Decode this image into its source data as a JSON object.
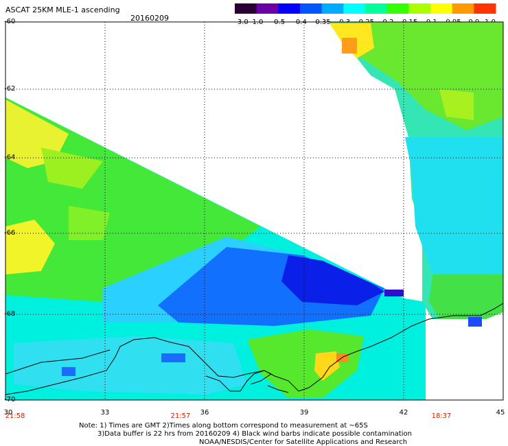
{
  "header": {
    "title": "ASCAT 25KM MLE-1 ascending",
    "date": "20160209"
  },
  "colorbar": {
    "labels": [
      "-3.0",
      "-1.0",
      "-0.5",
      "-0.4",
      "-0.35",
      "-0.3",
      "-0.25",
      "-0.2",
      "-0.15",
      "-0.1",
      "-0.05",
      "0.0",
      "1.0"
    ],
    "colors": [
      "#2a0033",
      "#6a00a8",
      "#0000ff",
      "#0055ff",
      "#00aaff",
      "#00ffff",
      "#00ff99",
      "#33ff00",
      "#aaff00",
      "#ffff00",
      "#ff9900",
      "#ff3300"
    ]
  },
  "map": {
    "lon_ticks": [
      "30",
      "33",
      "36",
      "39",
      "42",
      "45"
    ],
    "lat_ticks": [
      "-60",
      "-62",
      "-64",
      "-66",
      "-68",
      "-70"
    ],
    "time_labels": [
      "21:58",
      "21:57",
      "18:37"
    ],
    "coastline_color": "#000000"
  },
  "notes": {
    "line1": "Note: 1) Times are GMT 2)Times along bottom correspond to measurement at ~65S",
    "line2": "3)Data buffer is 22 hrs from 20160209 4) Black wind barbs indicate possible contamination",
    "line3": "NOAA/NESDIS/Center for Satellite Applications and Research"
  }
}
